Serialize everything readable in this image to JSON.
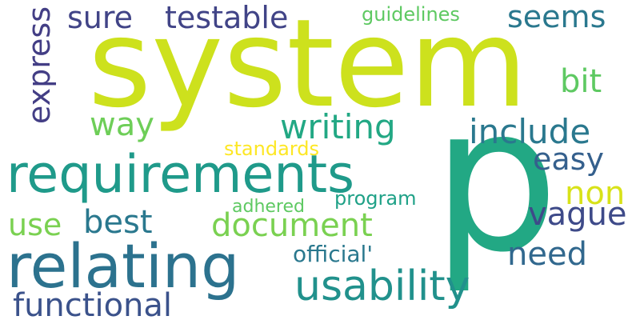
{
  "words": [
    {
      "text": "system",
      "color": "#cde11d"
    },
    {
      "text": "p",
      "color": "#22a884"
    },
    {
      "text": "requirements",
      "color": "#1f9a8a"
    },
    {
      "text": "relating",
      "color": "#2c728e"
    },
    {
      "text": "usability",
      "color": "#21918c"
    },
    {
      "text": "functional",
      "color": "#3b528b"
    },
    {
      "text": "document",
      "color": "#7ad151"
    },
    {
      "text": "testable",
      "color": "#414487"
    },
    {
      "text": "sure",
      "color": "#414487"
    },
    {
      "text": "seems",
      "color": "#2a788e"
    },
    {
      "text": "guidelines",
      "color": "#5ec962"
    },
    {
      "text": "express",
      "color": "#433e85"
    },
    {
      "text": "bit",
      "color": "#5ec962"
    },
    {
      "text": "way",
      "color": "#6ece58"
    },
    {
      "text": "writing",
      "color": "#22a884"
    },
    {
      "text": "include",
      "color": "#2a788e"
    },
    {
      "text": "standards",
      "color": "#fde725"
    },
    {
      "text": "easy",
      "color": "#35608d"
    },
    {
      "text": "non",
      "color": "#d8e219"
    },
    {
      "text": "vague",
      "color": "#3e4a89"
    },
    {
      "text": "use",
      "color": "#7ad151"
    },
    {
      "text": "best",
      "color": "#2a788e"
    },
    {
      "text": "adhered",
      "color": "#5ec962"
    },
    {
      "text": "program",
      "color": "#1fa187"
    },
    {
      "text": "need",
      "color": "#31688e"
    },
    {
      "text": "official'",
      "color": "#2a788e"
    }
  ]
}
